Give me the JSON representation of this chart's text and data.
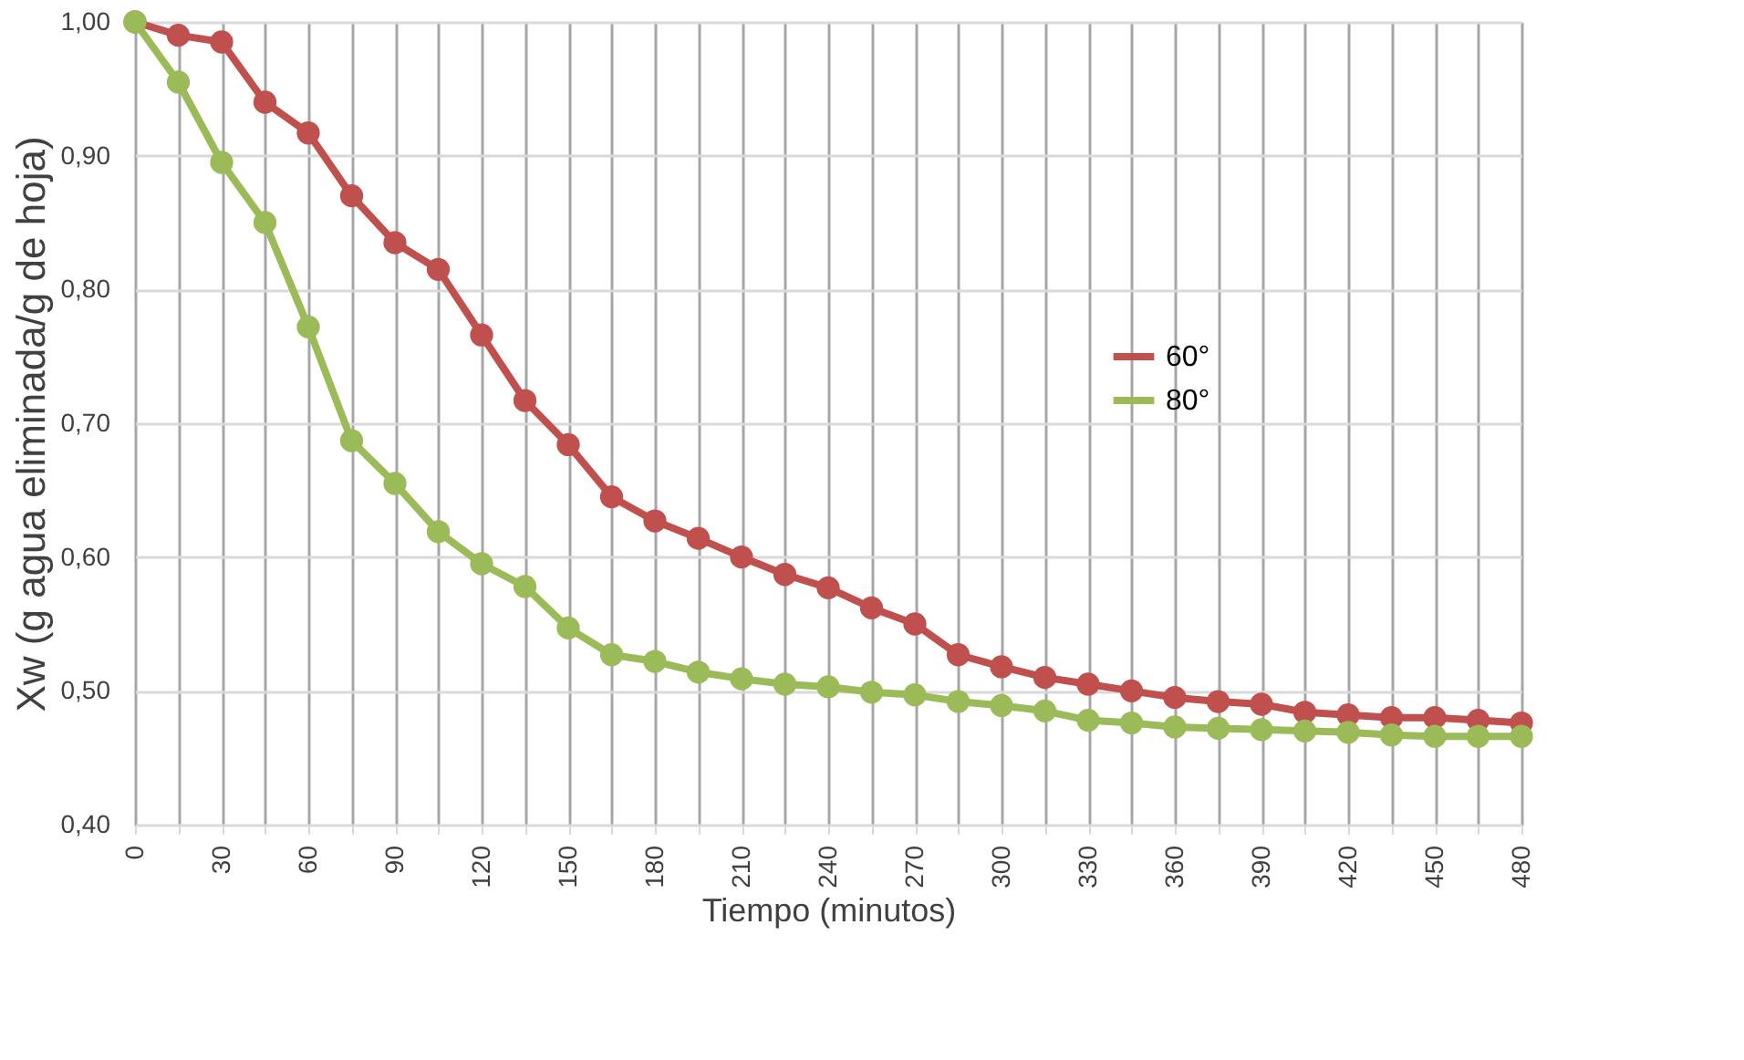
{
  "chart_data": {
    "type": "line",
    "xlabel": "Tiempo (minutos)",
    "ylabel": "Xw (g agua eliminada/g de hoja)",
    "x": [
      0,
      15,
      30,
      45,
      60,
      75,
      90,
      105,
      120,
      135,
      150,
      165,
      180,
      195,
      210,
      225,
      240,
      255,
      270,
      285,
      300,
      315,
      330,
      345,
      360,
      375,
      390,
      405,
      420,
      435,
      450,
      465,
      480
    ],
    "series": [
      {
        "name": "60°",
        "color": "#c0504d",
        "values": [
          1.0,
          0.99,
          0.985,
          0.94,
          0.917,
          0.87,
          0.835,
          0.815,
          0.766,
          0.717,
          0.684,
          0.645,
          0.627,
          0.614,
          0.6,
          0.587,
          0.577,
          0.562,
          0.55,
          0.527,
          0.518,
          0.51,
          0.505,
          0.5,
          0.495,
          0.492,
          0.49,
          0.484,
          0.482,
          0.48,
          0.48,
          0.478,
          0.476
        ]
      },
      {
        "name": "80°",
        "color": "#9bbb59",
        "values": [
          1.0,
          0.955,
          0.895,
          0.85,
          0.772,
          0.687,
          0.655,
          0.619,
          0.595,
          0.578,
          0.547,
          0.527,
          0.522,
          0.514,
          0.509,
          0.505,
          0.503,
          0.499,
          0.497,
          0.492,
          0.489,
          0.485,
          0.478,
          0.476,
          0.473,
          0.472,
          0.471,
          0.47,
          0.469,
          0.467,
          0.466,
          0.466,
          0.466
        ]
      }
    ],
    "xlim": [
      0,
      480
    ],
    "xticks": [
      0,
      {
        "value": 15,
        "label": null
      },
      30,
      {
        "value": 45,
        "label": null
      },
      60,
      {
        "value": 75,
        "label": null
      },
      90,
      {
        "value": 105,
        "label": null
      },
      120,
      {
        "value": 135,
        "label": null
      },
      150,
      {
        "value": 165,
        "label": null
      },
      180,
      {
        "value": 195,
        "label": null
      },
      210,
      {
        "value": 225,
        "label": null
      },
      240,
      {
        "value": 255,
        "label": null
      },
      270,
      {
        "value": 285,
        "label": null
      },
      300,
      {
        "value": 315,
        "label": null
      },
      330,
      {
        "value": 345,
        "label": null
      },
      360,
      {
        "value": 375,
        "label": null
      },
      390,
      {
        "value": 405,
        "label": null
      },
      420,
      {
        "value": 435,
        "label": null
      },
      450,
      {
        "value": 465,
        "label": null
      },
      480
    ],
    "ylim": [
      0.4,
      1.0
    ],
    "yticks": [
      {
        "value": 0.4,
        "label": "0,40"
      },
      {
        "value": 0.5,
        "label": "0,50"
      },
      {
        "value": 0.6,
        "label": "0,60"
      },
      {
        "value": 0.7,
        "label": "0,70"
      },
      {
        "value": 0.8,
        "label": "0,80"
      },
      {
        "value": 0.9,
        "label": "0,90"
      },
      {
        "value": 1.0,
        "label": "1,00"
      }
    ],
    "grid": true,
    "legend": "top right",
    "marker": "circle",
    "line_style": "solid"
  }
}
